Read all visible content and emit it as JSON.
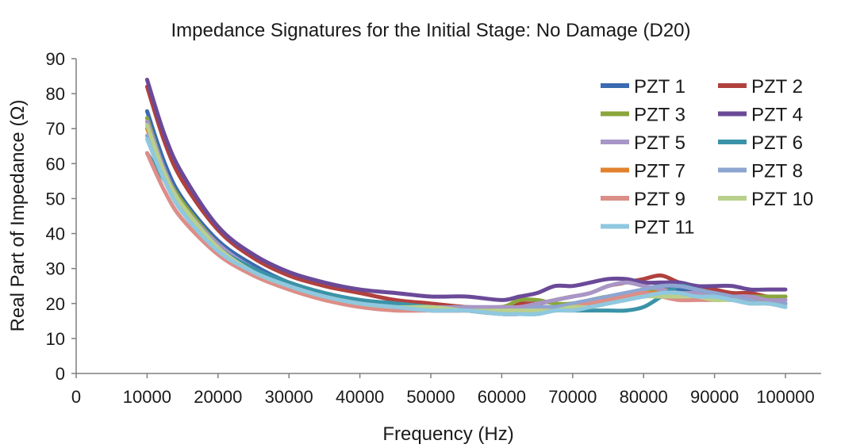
{
  "chart_data": {
    "type": "line",
    "title": "Impedance Signatures for the Initial Stage: No Damage (D20)",
    "xlabel": "Frequency (Hz)",
    "ylabel": "Real Part of Impedance (Ω)",
    "xlim": [
      0,
      100000
    ],
    "ylim": [
      0,
      90
    ],
    "xticks": [
      "0",
      "10000",
      "20000",
      "30000",
      "40000",
      "50000",
      "60000",
      "70000",
      "80000",
      "90000",
      "100000"
    ],
    "yticks": [
      "0",
      "10",
      "20",
      "30",
      "40",
      "50",
      "60",
      "70",
      "80",
      "90"
    ],
    "grid": false,
    "legend_position": "top-right",
    "x": [
      10000,
      12500,
      15000,
      20000,
      25000,
      30000,
      35000,
      40000,
      45000,
      50000,
      55000,
      60000,
      62500,
      65000,
      67500,
      70000,
      72500,
      75000,
      77500,
      80000,
      82500,
      85000,
      87500,
      90000,
      92500,
      95000,
      97500,
      100000
    ],
    "series": [
      {
        "name": "PZT 1",
        "color": "#3b6bb0",
        "values": [
          75,
          60,
          50,
          38,
          31,
          26,
          23,
          21,
          20,
          19,
          18,
          18,
          18,
          19,
          19,
          20,
          21,
          22,
          23,
          24,
          25,
          24,
          23,
          23,
          22,
          22,
          21,
          21
        ]
      },
      {
        "name": "PZT 2",
        "color": "#b0413e",
        "values": [
          82,
          66,
          55,
          41,
          33,
          28,
          25,
          23,
          21,
          20,
          19,
          19,
          20,
          20,
          21,
          22,
          23,
          25,
          26,
          27,
          28,
          26,
          25,
          24,
          23,
          23,
          22,
          22
        ]
      },
      {
        "name": "PZT 3",
        "color": "#8aa63c",
        "values": [
          73,
          58,
          49,
          37,
          30,
          26,
          23,
          21,
          20,
          19,
          19,
          19,
          21,
          21,
          20,
          20,
          21,
          22,
          22,
          23,
          24,
          23,
          23,
          22,
          22,
          22,
          22,
          22
        ]
      },
      {
        "name": "PZT 4",
        "color": "#6a4a98",
        "values": [
          84,
          68,
          57,
          42,
          34,
          29,
          26,
          24,
          23,
          22,
          22,
          21,
          22,
          23,
          25,
          25,
          26,
          27,
          27,
          26,
          26,
          26,
          25,
          25,
          25,
          24,
          24,
          24
        ]
      },
      {
        "name": "PZT 5",
        "color": "#a896c6",
        "values": [
          72,
          58,
          48,
          37,
          30,
          26,
          23,
          21,
          20,
          19,
          19,
          19,
          19,
          20,
          21,
          22,
          23,
          25,
          26,
          25,
          24,
          23,
          23,
          22,
          22,
          22,
          21,
          21
        ]
      },
      {
        "name": "PZT 6",
        "color": "#3a93a8",
        "values": [
          63,
          55,
          47,
          36,
          30,
          26,
          23,
          21,
          20,
          19,
          18,
          17,
          17,
          17,
          18,
          18,
          18,
          18,
          18,
          19,
          22,
          25,
          24,
          23,
          22,
          21,
          20,
          20
        ]
      },
      {
        "name": "PZT 7",
        "color": "#e2822e",
        "values": [
          70,
          57,
          48,
          36,
          29,
          25,
          22,
          20,
          19,
          18,
          18,
          18,
          18,
          18,
          18,
          19,
          20,
          21,
          22,
          23,
          23,
          23,
          22,
          22,
          21,
          21,
          20,
          20
        ]
      },
      {
        "name": "PZT 8",
        "color": "#8ea5d1",
        "values": [
          68,
          56,
          47,
          36,
          29,
          25,
          22,
          20,
          19,
          18,
          18,
          18,
          18,
          19,
          19,
          20,
          21,
          22,
          23,
          24,
          25,
          25,
          24,
          23,
          22,
          21,
          20,
          20
        ]
      },
      {
        "name": "PZT 9",
        "color": "#dc8e88",
        "values": [
          63,
          52,
          44,
          34,
          28,
          24,
          21,
          19,
          18,
          18,
          18,
          17,
          17,
          18,
          18,
          19,
          20,
          21,
          22,
          23,
          22,
          21,
          21,
          21,
          21,
          20,
          20,
          19
        ]
      },
      {
        "name": "PZT 10",
        "color": "#b9d08c",
        "values": [
          71,
          57,
          48,
          36,
          29,
          25,
          22,
          20,
          19,
          19,
          18,
          18,
          18,
          18,
          18,
          19,
          19,
          20,
          21,
          22,
          22,
          22,
          22,
          21,
          21,
          20,
          20,
          19
        ]
      },
      {
        "name": "PZT 11",
        "color": "#8fc8df",
        "values": [
          67,
          55,
          46,
          35,
          29,
          25,
          22,
          20,
          19,
          18,
          18,
          17,
          17,
          17,
          18,
          18,
          19,
          20,
          21,
          22,
          23,
          23,
          22,
          22,
          21,
          20,
          20,
          19
        ]
      }
    ]
  }
}
